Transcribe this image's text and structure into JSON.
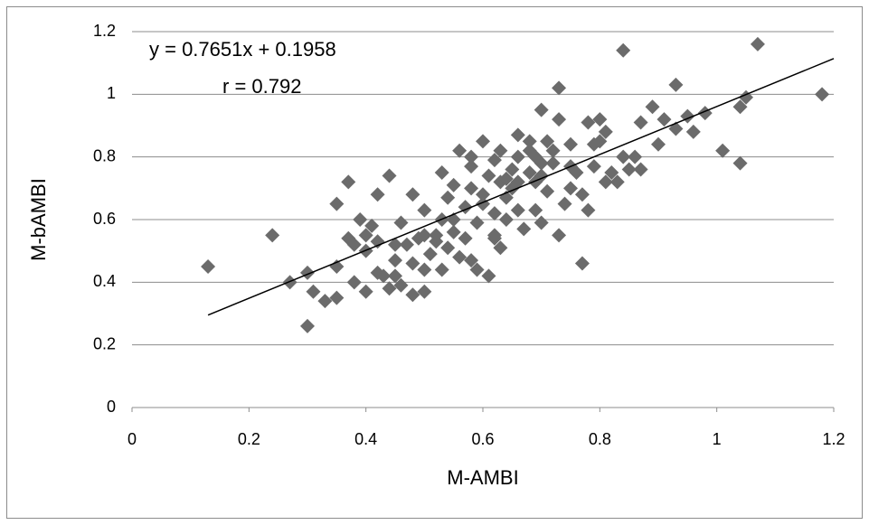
{
  "chart_data": {
    "type": "scatter",
    "x_label": "M-AMBI",
    "y_label": "M-bAMBI",
    "annotations": [
      "y = 0.7651x + 0.1958",
      "r = 0.792"
    ],
    "trendline": {
      "slope": 0.7651,
      "intercept": 0.1958,
      "color": "#000000"
    },
    "color": "#6b6b6b",
    "grid": true,
    "xlim": [
      0,
      1.2
    ],
    "ylim": [
      0,
      1.2
    ],
    "xticks": [
      0,
      0.2,
      0.4,
      0.6,
      0.8,
      1,
      1.2
    ],
    "yticks": [
      0,
      0.2,
      0.4,
      0.6,
      0.8,
      1,
      1.2
    ],
    "x": [
      0.13,
      0.24,
      0.27,
      0.3,
      0.3,
      0.31,
      0.33,
      0.35,
      0.35,
      0.35,
      0.37,
      0.37,
      0.38,
      0.38,
      0.39,
      0.4,
      0.4,
      0.41,
      0.42,
      0.42,
      0.42,
      0.43,
      0.44,
      0.44,
      0.45,
      0.45,
      0.46,
      0.46,
      0.47,
      0.48,
      0.48,
      0.48,
      0.49,
      0.5,
      0.5,
      0.5,
      0.51,
      0.52,
      0.52,
      0.53,
      0.53,
      0.54,
      0.54,
      0.55,
      0.55,
      0.56,
      0.56,
      0.57,
      0.57,
      0.58,
      0.58,
      0.58,
      0.59,
      0.59,
      0.6,
      0.6,
      0.61,
      0.61,
      0.62,
      0.62,
      0.62,
      0.63,
      0.63,
      0.63,
      0.64,
      0.64,
      0.65,
      0.66,
      0.66,
      0.66,
      0.67,
      0.68,
      0.68,
      0.69,
      0.69,
      0.7,
      0.7,
      0.7,
      0.71,
      0.71,
      0.72,
      0.73,
      0.73,
      0.73,
      0.74,
      0.75,
      0.75,
      0.77,
      0.77,
      0.78,
      0.78,
      0.79,
      0.79,
      0.8,
      0.81,
      0.81,
      0.83,
      0.84,
      0.84,
      0.85,
      0.87,
      0.87,
      0.89,
      0.9,
      0.91,
      0.93,
      0.93,
      0.95,
      0.96,
      0.98,
      1.01,
      1.04,
      1.04,
      1.05,
      1.07,
      1.18,
      0.55,
      0.6,
      0.65,
      0.68,
      0.7,
      0.62,
      0.45,
      0.5,
      0.72,
      0.75,
      0.58,
      0.64,
      0.66,
      0.53,
      0.8,
      0.82,
      0.86,
      0.76,
      0.69,
      0.4
    ],
    "y": [
      0.45,
      0.55,
      0.4,
      0.43,
      0.26,
      0.37,
      0.34,
      0.35,
      0.65,
      0.45,
      0.72,
      0.54,
      0.4,
      0.52,
      0.6,
      0.37,
      0.55,
      0.58,
      0.68,
      0.43,
      0.53,
      0.42,
      0.38,
      0.74,
      0.47,
      0.42,
      0.59,
      0.39,
      0.52,
      0.68,
      0.46,
      0.36,
      0.54,
      0.37,
      0.44,
      0.63,
      0.49,
      0.53,
      0.55,
      0.44,
      0.75,
      0.51,
      0.67,
      0.56,
      0.71,
      0.48,
      0.82,
      0.64,
      0.54,
      0.77,
      0.7,
      0.47,
      0.44,
      0.59,
      0.85,
      0.65,
      0.74,
      0.42,
      0.62,
      0.79,
      0.54,
      0.72,
      0.82,
      0.51,
      0.6,
      0.67,
      0.76,
      0.87,
      0.72,
      0.8,
      0.57,
      0.75,
      0.85,
      0.63,
      0.8,
      0.95,
      0.74,
      0.59,
      0.85,
      0.69,
      0.78,
      1.02,
      0.55,
      0.92,
      0.65,
      0.77,
      0.84,
      0.46,
      0.68,
      0.91,
      0.63,
      0.77,
      0.84,
      0.92,
      0.72,
      0.88,
      0.72,
      1.14,
      0.8,
      0.76,
      0.76,
      0.91,
      0.96,
      0.84,
      0.92,
      1.03,
      0.89,
      0.93,
      0.88,
      0.94,
      0.82,
      0.78,
      0.96,
      0.99,
      1.16,
      1.0,
      0.6,
      0.68,
      0.7,
      0.82,
      0.78,
      0.55,
      0.52,
      0.55,
      0.82,
      0.7,
      0.8,
      0.73,
      0.63,
      0.6,
      0.85,
      0.75,
      0.8,
      0.75,
      0.72,
      0.5
    ]
  }
}
